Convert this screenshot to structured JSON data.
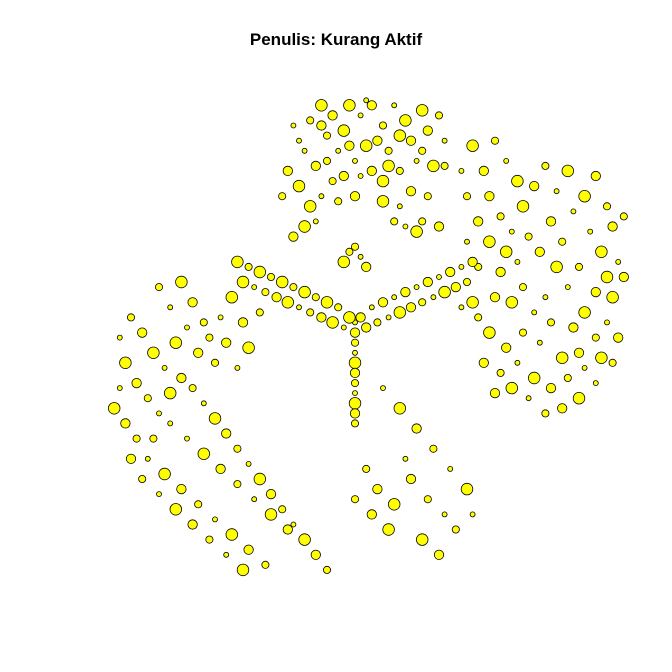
{
  "chart_data": {
    "type": "scatter",
    "title": "Penulis: Kurang Aktif",
    "xlabel": "",
    "ylabel": "",
    "axes": "none",
    "grid": false,
    "legend": "none",
    "xlim": [
      0,
      1
    ],
    "ylim": [
      0,
      1
    ],
    "node_fill": "#FFFF00",
    "node_stroke": "#000000",
    "series": [
      {
        "points": [
          [
            0.51,
            0.08
          ],
          [
            0.52,
            0.14
          ],
          [
            0.53,
            0.06
          ],
          [
            0.55,
            0.1
          ],
          [
            0.5,
            0.17
          ],
          [
            0.49,
            0.06
          ],
          [
            0.46,
            0.08
          ],
          [
            0.45,
            0.12
          ],
          [
            0.47,
            0.15
          ],
          [
            0.44,
            0.06
          ],
          [
            0.48,
            0.2
          ],
          [
            0.42,
            0.09
          ],
          [
            0.41,
            0.15
          ],
          [
            0.4,
            0.22
          ],
          [
            0.43,
            0.18
          ],
          [
            0.56,
            0.15
          ],
          [
            0.57,
            0.06
          ],
          [
            0.59,
            0.09
          ],
          [
            0.6,
            0.13
          ],
          [
            0.58,
            0.19
          ],
          [
            0.61,
            0.17
          ],
          [
            0.62,
            0.07
          ],
          [
            0.63,
            0.11
          ],
          [
            0.65,
            0.08
          ],
          [
            0.66,
            0.13
          ],
          [
            0.64,
            0.18
          ],
          [
            0.38,
            0.19
          ],
          [
            0.37,
            0.24
          ],
          [
            0.39,
            0.1
          ],
          [
            0.55,
            0.21
          ],
          [
            0.53,
            0.19
          ],
          [
            0.46,
            0.21
          ],
          [
            0.44,
            0.24
          ],
          [
            0.42,
            0.26
          ],
          [
            0.6,
            0.23
          ],
          [
            0.63,
            0.24
          ],
          [
            0.58,
            0.26
          ],
          [
            0.55,
            0.25
          ],
          [
            0.5,
            0.24
          ],
          [
            0.47,
            0.25
          ],
          [
            0.43,
            0.29
          ],
          [
            0.41,
            0.3
          ],
          [
            0.39,
            0.32
          ],
          [
            0.57,
            0.29
          ],
          [
            0.59,
            0.3
          ],
          [
            0.61,
            0.31
          ],
          [
            0.65,
            0.3
          ],
          [
            0.62,
            0.29
          ],
          [
            0.52,
            0.05
          ],
          [
            0.48,
            0.11
          ],
          [
            0.54,
            0.13
          ],
          [
            0.45,
            0.17
          ],
          [
            0.51,
            0.2
          ],
          [
            0.56,
            0.18
          ],
          [
            0.49,
            0.14
          ],
          [
            0.62,
            0.15
          ],
          [
            0.4,
            0.13
          ],
          [
            0.58,
            0.12
          ],
          [
            0.44,
            0.1
          ],
          [
            0.66,
            0.18
          ]
        ]
      },
      {
        "points": [
          [
            0.71,
            0.14
          ],
          [
            0.73,
            0.19
          ],
          [
            0.75,
            0.13
          ],
          [
            0.77,
            0.17
          ],
          [
            0.79,
            0.21
          ],
          [
            0.74,
            0.24
          ],
          [
            0.76,
            0.28
          ],
          [
            0.78,
            0.31
          ],
          [
            0.8,
            0.26
          ],
          [
            0.82,
            0.22
          ],
          [
            0.84,
            0.18
          ],
          [
            0.86,
            0.23
          ],
          [
            0.88,
            0.19
          ],
          [
            0.85,
            0.29
          ],
          [
            0.87,
            0.33
          ],
          [
            0.89,
            0.27
          ],
          [
            0.91,
            0.24
          ],
          [
            0.93,
            0.2
          ],
          [
            0.95,
            0.26
          ],
          [
            0.92,
            0.31
          ],
          [
            0.94,
            0.35
          ],
          [
            0.96,
            0.3
          ],
          [
            0.98,
            0.28
          ],
          [
            0.97,
            0.37
          ],
          [
            0.95,
            0.4
          ],
          [
            0.93,
            0.43
          ],
          [
            0.9,
            0.38
          ],
          [
            0.88,
            0.42
          ],
          [
            0.86,
            0.38
          ],
          [
            0.83,
            0.35
          ],
          [
            0.81,
            0.32
          ],
          [
            0.79,
            0.37
          ],
          [
            0.77,
            0.35
          ],
          [
            0.72,
            0.29
          ],
          [
            0.7,
            0.24
          ],
          [
            0.69,
            0.19
          ],
          [
            0.74,
            0.33
          ],
          [
            0.76,
            0.39
          ],
          [
            0.8,
            0.42
          ],
          [
            0.84,
            0.44
          ],
          [
            0.91,
            0.47
          ],
          [
            0.89,
            0.5
          ],
          [
            0.85,
            0.49
          ],
          [
            0.82,
            0.47
          ],
          [
            0.78,
            0.45
          ],
          [
            0.75,
            0.44
          ],
          [
            0.72,
            0.38
          ],
          [
            0.7,
            0.33
          ],
          [
            0.96,
            0.44
          ],
          [
            0.98,
            0.4
          ],
          [
            0.72,
            0.48
          ],
          [
            0.69,
            0.46
          ],
          [
            0.74,
            0.51
          ],
          [
            0.77,
            0.54
          ],
          [
            0.8,
            0.51
          ],
          [
            0.83,
            0.53
          ],
          [
            0.87,
            0.56
          ],
          [
            0.9,
            0.55
          ],
          [
            0.93,
            0.52
          ],
          [
            0.95,
            0.49
          ],
          [
            0.71,
            0.45
          ],
          [
            0.73,
            0.57
          ],
          [
            0.76,
            0.59
          ],
          [
            0.79,
            0.57
          ],
          [
            0.82,
            0.6
          ],
          [
            0.85,
            0.62
          ],
          [
            0.88,
            0.6
          ],
          [
            0.91,
            0.58
          ],
          [
            0.94,
            0.56
          ],
          [
            0.97,
            0.52
          ],
          [
            0.96,
            0.57
          ],
          [
            0.93,
            0.61
          ],
          [
            0.9,
            0.64
          ],
          [
            0.87,
            0.66
          ],
          [
            0.84,
            0.67
          ],
          [
            0.81,
            0.64
          ],
          [
            0.78,
            0.62
          ],
          [
            0.75,
            0.63
          ]
        ]
      },
      {
        "points": [
          [
            0.5,
            0.51
          ],
          [
            0.5,
            0.53
          ],
          [
            0.5,
            0.55
          ],
          [
            0.5,
            0.57
          ],
          [
            0.5,
            0.59
          ],
          [
            0.5,
            0.61
          ],
          [
            0.5,
            0.63
          ],
          [
            0.5,
            0.65
          ],
          [
            0.5,
            0.67
          ],
          [
            0.5,
            0.69
          ],
          [
            0.48,
            0.5
          ],
          [
            0.46,
            0.49
          ],
          [
            0.44,
            0.48
          ],
          [
            0.42,
            0.47
          ],
          [
            0.4,
            0.46
          ],
          [
            0.38,
            0.45
          ],
          [
            0.36,
            0.44
          ],
          [
            0.34,
            0.43
          ],
          [
            0.32,
            0.42
          ],
          [
            0.3,
            0.41
          ],
          [
            0.52,
            0.5
          ],
          [
            0.54,
            0.49
          ],
          [
            0.56,
            0.48
          ],
          [
            0.58,
            0.47
          ],
          [
            0.6,
            0.46
          ],
          [
            0.62,
            0.45
          ],
          [
            0.64,
            0.44
          ],
          [
            0.66,
            0.43
          ],
          [
            0.68,
            0.42
          ],
          [
            0.7,
            0.41
          ],
          [
            0.5,
            0.49
          ],
          [
            0.49,
            0.48
          ],
          [
            0.51,
            0.48
          ],
          [
            0.47,
            0.46
          ],
          [
            0.53,
            0.46
          ],
          [
            0.45,
            0.45
          ],
          [
            0.55,
            0.45
          ],
          [
            0.43,
            0.44
          ],
          [
            0.57,
            0.44
          ],
          [
            0.41,
            0.43
          ],
          [
            0.59,
            0.43
          ],
          [
            0.39,
            0.42
          ],
          [
            0.61,
            0.42
          ],
          [
            0.37,
            0.41
          ],
          [
            0.63,
            0.41
          ],
          [
            0.35,
            0.4
          ],
          [
            0.65,
            0.4
          ],
          [
            0.33,
            0.39
          ],
          [
            0.67,
            0.39
          ],
          [
            0.31,
            0.38
          ],
          [
            0.69,
            0.38
          ],
          [
            0.29,
            0.37
          ],
          [
            0.71,
            0.37
          ],
          [
            0.49,
            0.35
          ],
          [
            0.51,
            0.36
          ],
          [
            0.48,
            0.37
          ],
          [
            0.52,
            0.38
          ],
          [
            0.5,
            0.34
          ]
        ]
      },
      {
        "points": [
          [
            0.15,
            0.42
          ],
          [
            0.17,
            0.46
          ],
          [
            0.19,
            0.41
          ],
          [
            0.21,
            0.45
          ],
          [
            0.23,
            0.49
          ],
          [
            0.2,
            0.5
          ],
          [
            0.18,
            0.53
          ],
          [
            0.22,
            0.55
          ],
          [
            0.24,
            0.52
          ],
          [
            0.26,
            0.48
          ],
          [
            0.28,
            0.44
          ],
          [
            0.27,
            0.53
          ],
          [
            0.25,
            0.57
          ],
          [
            0.29,
            0.58
          ],
          [
            0.31,
            0.54
          ],
          [
            0.3,
            0.49
          ],
          [
            0.33,
            0.47
          ],
          [
            0.16,
            0.58
          ],
          [
            0.14,
            0.55
          ],
          [
            0.12,
            0.51
          ],
          [
            0.1,
            0.48
          ],
          [
            0.08,
            0.52
          ],
          [
            0.09,
            0.57
          ],
          [
            0.11,
            0.61
          ],
          [
            0.13,
            0.64
          ],
          [
            0.15,
            0.67
          ],
          [
            0.17,
            0.63
          ],
          [
            0.19,
            0.6
          ],
          [
            0.21,
            0.62
          ],
          [
            0.23,
            0.65
          ],
          [
            0.25,
            0.68
          ],
          [
            0.27,
            0.71
          ],
          [
            0.29,
            0.74
          ],
          [
            0.31,
            0.77
          ],
          [
            0.33,
            0.8
          ],
          [
            0.35,
            0.83
          ],
          [
            0.37,
            0.86
          ],
          [
            0.39,
            0.89
          ],
          [
            0.41,
            0.92
          ],
          [
            0.43,
            0.95
          ],
          [
            0.45,
            0.98
          ],
          [
            0.08,
            0.62
          ],
          [
            0.07,
            0.66
          ],
          [
            0.09,
            0.69
          ],
          [
            0.11,
            0.72
          ],
          [
            0.13,
            0.76
          ],
          [
            0.16,
            0.79
          ],
          [
            0.19,
            0.82
          ],
          [
            0.22,
            0.85
          ],
          [
            0.25,
            0.88
          ],
          [
            0.28,
            0.91
          ],
          [
            0.31,
            0.94
          ],
          [
            0.34,
            0.97
          ],
          [
            0.2,
            0.72
          ],
          [
            0.23,
            0.75
          ],
          [
            0.26,
            0.78
          ],
          [
            0.29,
            0.81
          ],
          [
            0.32,
            0.84
          ],
          [
            0.35,
            0.87
          ],
          [
            0.38,
            0.9
          ],
          [
            0.12,
            0.8
          ],
          [
            0.15,
            0.83
          ],
          [
            0.18,
            0.86
          ],
          [
            0.21,
            0.89
          ],
          [
            0.24,
            0.92
          ],
          [
            0.27,
            0.95
          ],
          [
            0.3,
            0.98
          ],
          [
            0.1,
            0.76
          ],
          [
            0.14,
            0.72
          ],
          [
            0.17,
            0.69
          ]
        ]
      },
      {
        "points": [
          [
            0.55,
            0.62
          ],
          [
            0.58,
            0.66
          ],
          [
            0.61,
            0.7
          ],
          [
            0.64,
            0.74
          ],
          [
            0.67,
            0.78
          ],
          [
            0.7,
            0.82
          ],
          [
            0.6,
            0.8
          ],
          [
            0.63,
            0.84
          ],
          [
            0.66,
            0.87
          ],
          [
            0.57,
            0.85
          ],
          [
            0.54,
            0.82
          ],
          [
            0.52,
            0.78
          ],
          [
            0.59,
            0.76
          ],
          [
            0.62,
            0.92
          ],
          [
            0.65,
            0.95
          ],
          [
            0.68,
            0.9
          ],
          [
            0.71,
            0.87
          ],
          [
            0.56,
            0.9
          ],
          [
            0.53,
            0.87
          ],
          [
            0.5,
            0.84
          ]
        ]
      }
    ]
  }
}
